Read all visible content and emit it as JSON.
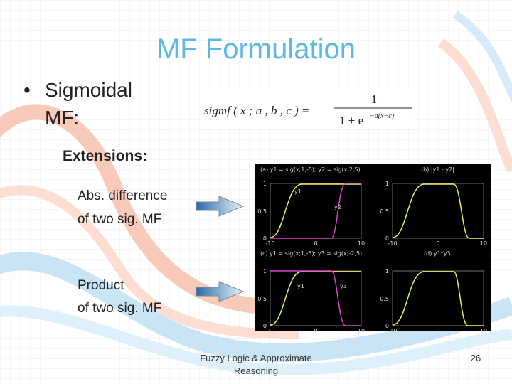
{
  "title": "MF Formulation",
  "bullet": {
    "marker": "•",
    "line1": "Sigmoidal",
    "line2": "MF:"
  },
  "formula": {
    "lhs": "sigmf ( x ; a , b , c ) =",
    "numerator": "1",
    "denominator": "1 + e",
    "exponent": "−a(x−c)"
  },
  "extensions": {
    "heading": "Extensions:",
    "items": [
      {
        "line1": "Abs. difference",
        "line2": "of two sig. MF"
      },
      {
        "line1": "Product",
        "line2": "of two sig. MF"
      }
    ]
  },
  "figure": {
    "panels": [
      {
        "title": "(a) y1 = sig(x;1,-5); y2 = sig(x;2,5)",
        "curve_labels": [
          "y1",
          "y2"
        ]
      },
      {
        "title": "(b) |y1 - y2|"
      },
      {
        "title": "(c) y1 = sig(x;1,-5); y3 = sig(x;-2,5)",
        "curve_labels": [
          "y1",
          "y3"
        ]
      },
      {
        "title": "(d) y1*y3"
      }
    ],
    "x_tick_labels": [
      "-10",
      "0",
      "10"
    ],
    "y_tick_labels": [
      "0",
      "0.5",
      "1"
    ]
  },
  "footer": {
    "line1": "Fuzzy Logic & Approximate",
    "line2": "Reasoning",
    "page": "26"
  }
}
